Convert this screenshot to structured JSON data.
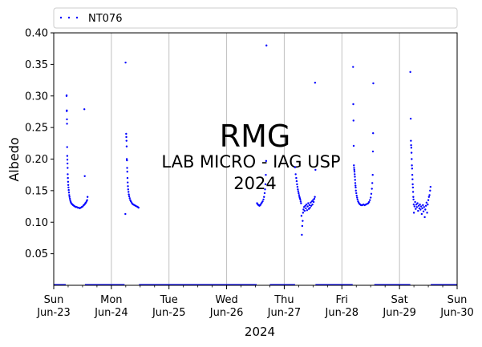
{
  "chart_data": {
    "type": "scatter",
    "title": "",
    "xlabel": "2024",
    "ylabel": "Albedo",
    "ylim": [
      0.0,
      0.4
    ],
    "xlim": [
      "2024-06-23",
      "2024-06-30"
    ],
    "x_ticks": [
      {
        "date": "2024-06-23",
        "day": "Sun",
        "label": "Jun-23"
      },
      {
        "date": "2024-06-24",
        "day": "Mon",
        "label": "Jun-24"
      },
      {
        "date": "2024-06-25",
        "day": "Tue",
        "label": "Jun-25"
      },
      {
        "date": "2024-06-26",
        "day": "Wed",
        "label": "Jun-26"
      },
      {
        "date": "2024-06-27",
        "day": "Thu",
        "label": "Jun-27"
      },
      {
        "date": "2024-06-28",
        "day": "Fri",
        "label": "Jun-28"
      },
      {
        "date": "2024-06-29",
        "day": "Sat",
        "label": "Jun-29"
      },
      {
        "date": "2024-06-30",
        "day": "Sun",
        "label": "Jun-30"
      }
    ],
    "y_ticks": [
      "0.05",
      "0.10",
      "0.15",
      "0.20",
      "0.25",
      "0.30",
      "0.35",
      "0.40"
    ],
    "y_tick_values": [
      0.05,
      0.1,
      0.15,
      0.2,
      0.25,
      0.3,
      0.35,
      0.4
    ],
    "grid": "vertical-major",
    "legend": {
      "placement": "top",
      "entries": [
        "NT076"
      ]
    },
    "series": [
      {
        "name": "NT076",
        "color": "#0000ff",
        "points": [
          [
            "2024-06-23T05:20",
            0.3
          ],
          [
            "2024-06-23T05:22",
            0.301
          ],
          [
            "2024-06-23T05:25",
            0.276
          ],
          [
            "2024-06-23T05:27",
            0.277
          ],
          [
            "2024-06-23T05:30",
            0.263
          ],
          [
            "2024-06-23T05:32",
            0.256
          ],
          [
            "2024-06-23T05:35",
            0.219
          ],
          [
            "2024-06-23T05:38",
            0.205
          ],
          [
            "2024-06-23T05:41",
            0.199
          ],
          [
            "2024-06-23T05:44",
            0.193
          ],
          [
            "2024-06-23T05:47",
            0.186
          ],
          [
            "2024-06-23T05:50",
            0.176
          ],
          [
            "2024-06-23T05:54",
            0.17
          ],
          [
            "2024-06-23T05:58",
            0.164
          ],
          [
            "2024-06-23T06:03",
            0.159
          ],
          [
            "2024-06-23T06:08",
            0.155
          ],
          [
            "2024-06-23T06:14",
            0.151
          ],
          [
            "2024-06-23T06:20",
            0.147
          ],
          [
            "2024-06-23T06:27",
            0.143
          ],
          [
            "2024-06-23T06:35",
            0.14
          ],
          [
            "2024-06-23T06:44",
            0.137
          ],
          [
            "2024-06-23T06:54",
            0.134
          ],
          [
            "2024-06-23T07:05",
            0.132
          ],
          [
            "2024-06-23T07:18",
            0.13
          ],
          [
            "2024-06-23T07:32",
            0.129
          ],
          [
            "2024-06-23T07:48",
            0.128
          ],
          [
            "2024-06-23T08:05",
            0.127
          ],
          [
            "2024-06-23T08:25",
            0.126
          ],
          [
            "2024-06-23T08:48",
            0.125
          ],
          [
            "2024-06-23T09:10",
            0.124
          ],
          [
            "2024-06-23T09:35",
            0.124
          ],
          [
            "2024-06-23T10:00",
            0.123
          ],
          [
            "2024-06-23T10:25",
            0.123
          ],
          [
            "2024-06-23T10:50",
            0.122
          ],
          [
            "2024-06-23T11:15",
            0.123
          ],
          [
            "2024-06-23T11:40",
            0.124
          ],
          [
            "2024-06-23T12:05",
            0.125
          ],
          [
            "2024-06-23T12:30",
            0.127
          ],
          [
            "2024-06-23T12:50",
            0.128
          ],
          [
            "2024-06-23T13:10",
            0.13
          ],
          [
            "2024-06-23T13:25",
            0.131
          ],
          [
            "2024-06-23T13:40",
            0.133
          ],
          [
            "2024-06-23T13:55",
            0.135
          ],
          [
            "2024-06-23T14:05",
            0.14
          ],
          [
            "2024-06-23T12:55",
            0.173
          ],
          [
            "2024-06-23T12:45",
            0.279
          ],
          [
            "2024-06-24T05:55",
            0.353
          ],
          [
            "2024-06-24T06:10",
            0.24
          ],
          [
            "2024-06-24T06:14",
            0.235
          ],
          [
            "2024-06-24T06:18",
            0.229
          ],
          [
            "2024-06-24T06:22",
            0.22
          ],
          [
            "2024-06-24T06:26",
            0.2
          ],
          [
            "2024-06-24T06:30",
            0.198
          ],
          [
            "2024-06-24T06:34",
            0.186
          ],
          [
            "2024-06-24T06:38",
            0.18
          ],
          [
            "2024-06-24T06:43",
            0.17
          ],
          [
            "2024-06-24T06:48",
            0.163
          ],
          [
            "2024-06-24T06:54",
            0.157
          ],
          [
            "2024-06-24T07:00",
            0.152
          ],
          [
            "2024-06-24T07:08",
            0.148
          ],
          [
            "2024-06-24T07:16",
            0.144
          ],
          [
            "2024-06-24T07:26",
            0.141
          ],
          [
            "2024-06-24T07:38",
            0.138
          ],
          [
            "2024-06-24T07:52",
            0.135
          ],
          [
            "2024-06-24T08:08",
            0.133
          ],
          [
            "2024-06-24T08:26",
            0.131
          ],
          [
            "2024-06-24T08:46",
            0.129
          ],
          [
            "2024-06-24T09:10",
            0.128
          ],
          [
            "2024-06-24T09:36",
            0.127
          ],
          [
            "2024-06-24T10:04",
            0.126
          ],
          [
            "2024-06-24T10:34",
            0.125
          ],
          [
            "2024-06-24T11:00",
            0.124
          ],
          [
            "2024-06-24T11:20",
            0.123
          ],
          [
            "2024-06-24T05:50",
            0.113
          ],
          [
            "2024-06-26T12:40",
            0.13
          ],
          [
            "2024-06-26T13:00",
            0.128
          ],
          [
            "2024-06-26T13:20",
            0.127
          ],
          [
            "2024-06-26T13:40",
            0.126
          ],
          [
            "2024-06-26T14:00",
            0.127
          ],
          [
            "2024-06-26T14:20",
            0.129
          ],
          [
            "2024-06-26T14:40",
            0.131
          ],
          [
            "2024-06-26T15:00",
            0.133
          ],
          [
            "2024-06-26T15:20",
            0.136
          ],
          [
            "2024-06-26T15:35",
            0.14
          ],
          [
            "2024-06-26T15:50",
            0.146
          ],
          [
            "2024-06-26T16:00",
            0.152
          ],
          [
            "2024-06-26T16:10",
            0.16
          ],
          [
            "2024-06-26T16:20",
            0.175
          ],
          [
            "2024-06-26T16:28",
            0.197
          ],
          [
            "2024-06-26T16:35",
            0.38
          ],
          [
            "2024-06-27T04:30",
            0.187
          ],
          [
            "2024-06-27T04:45",
            0.176
          ],
          [
            "2024-06-27T05:00",
            0.17
          ],
          [
            "2024-06-27T05:10",
            0.165
          ],
          [
            "2024-06-27T05:20",
            0.16
          ],
          [
            "2024-06-27T05:30",
            0.156
          ],
          [
            "2024-06-27T05:40",
            0.152
          ],
          [
            "2024-06-27T05:50",
            0.149
          ],
          [
            "2024-06-27T06:00",
            0.146
          ],
          [
            "2024-06-27T06:10",
            0.143
          ],
          [
            "2024-06-27T06:20",
            0.14
          ],
          [
            "2024-06-27T06:30",
            0.138
          ],
          [
            "2024-06-27T06:40",
            0.136
          ],
          [
            "2024-06-27T06:50",
            0.133
          ],
          [
            "2024-06-27T07:00",
            0.13
          ],
          [
            "2024-06-27T07:10",
            0.11
          ],
          [
            "2024-06-27T07:20",
            0.08
          ],
          [
            "2024-06-27T07:30",
            0.094
          ],
          [
            "2024-06-27T07:40",
            0.102
          ],
          [
            "2024-06-27T07:50",
            0.115
          ],
          [
            "2024-06-27T08:00",
            0.12
          ],
          [
            "2024-06-27T08:15",
            0.124
          ],
          [
            "2024-06-27T08:30",
            0.118
          ],
          [
            "2024-06-27T08:45",
            0.126
          ],
          [
            "2024-06-27T09:00",
            0.122
          ],
          [
            "2024-06-27T09:15",
            0.128
          ],
          [
            "2024-06-27T09:30",
            0.119
          ],
          [
            "2024-06-27T09:45",
            0.125
          ],
          [
            "2024-06-27T10:00",
            0.13
          ],
          [
            "2024-06-27T10:15",
            0.121
          ],
          [
            "2024-06-27T10:30",
            0.127
          ],
          [
            "2024-06-27T10:45",
            0.123
          ],
          [
            "2024-06-27T11:00",
            0.131
          ],
          [
            "2024-06-27T11:15",
            0.126
          ],
          [
            "2024-06-27T11:30",
            0.133
          ],
          [
            "2024-06-27T11:45",
            0.128
          ],
          [
            "2024-06-27T12:00",
            0.135
          ],
          [
            "2024-06-27T12:15",
            0.132
          ],
          [
            "2024-06-27T12:30",
            0.137
          ],
          [
            "2024-06-27T12:45",
            0.14
          ],
          [
            "2024-06-27T13:00",
            0.183
          ],
          [
            "2024-06-27T12:50",
            0.321
          ],
          [
            "2024-06-28T04:40",
            0.346
          ],
          [
            "2024-06-28T04:45",
            0.287
          ],
          [
            "2024-06-28T04:50",
            0.261
          ],
          [
            "2024-06-28T04:55",
            0.221
          ],
          [
            "2024-06-28T05:00",
            0.19
          ],
          [
            "2024-06-28T05:05",
            0.186
          ],
          [
            "2024-06-28T05:10",
            0.183
          ],
          [
            "2024-06-28T05:15",
            0.18
          ],
          [
            "2024-06-28T05:20",
            0.176
          ],
          [
            "2024-06-28T05:25",
            0.172
          ],
          [
            "2024-06-28T05:30",
            0.167
          ],
          [
            "2024-06-28T05:35",
            0.162
          ],
          [
            "2024-06-28T05:40",
            0.158
          ],
          [
            "2024-06-28T05:45",
            0.155
          ],
          [
            "2024-06-28T05:50",
            0.15
          ],
          [
            "2024-06-28T06:00",
            0.146
          ],
          [
            "2024-06-28T06:10",
            0.142
          ],
          [
            "2024-06-28T06:20",
            0.139
          ],
          [
            "2024-06-28T06:30",
            0.136
          ],
          [
            "2024-06-28T06:45",
            0.133
          ],
          [
            "2024-06-28T07:00",
            0.131
          ],
          [
            "2024-06-28T07:20",
            0.129
          ],
          [
            "2024-06-28T07:40",
            0.128
          ],
          [
            "2024-06-28T08:00",
            0.127
          ],
          [
            "2024-06-28T08:30",
            0.127
          ],
          [
            "2024-06-28T09:00",
            0.128
          ],
          [
            "2024-06-28T09:30",
            0.127
          ],
          [
            "2024-06-28T10:00",
            0.128
          ],
          [
            "2024-06-28T10:30",
            0.129
          ],
          [
            "2024-06-28T11:00",
            0.13
          ],
          [
            "2024-06-28T11:20",
            0.132
          ],
          [
            "2024-06-28T11:40",
            0.135
          ],
          [
            "2024-06-28T12:00",
            0.139
          ],
          [
            "2024-06-28T12:15",
            0.145
          ],
          [
            "2024-06-28T12:30",
            0.153
          ],
          [
            "2024-06-28T12:40",
            0.162
          ],
          [
            "2024-06-28T12:50",
            0.175
          ],
          [
            "2024-06-28T12:55",
            0.212
          ],
          [
            "2024-06-28T13:00",
            0.241
          ],
          [
            "2024-06-28T13:05",
            0.32
          ],
          [
            "2024-06-29T04:30",
            0.338
          ],
          [
            "2024-06-29T04:40",
            0.264
          ],
          [
            "2024-06-29T04:45",
            0.229
          ],
          [
            "2024-06-29T04:50",
            0.222
          ],
          [
            "2024-06-29T04:55",
            0.218
          ],
          [
            "2024-06-29T05:00",
            0.21
          ],
          [
            "2024-06-29T05:05",
            0.2
          ],
          [
            "2024-06-29T05:10",
            0.19
          ],
          [
            "2024-06-29T05:15",
            0.185
          ],
          [
            "2024-06-29T05:20",
            0.175
          ],
          [
            "2024-06-29T05:25",
            0.168
          ],
          [
            "2024-06-29T05:30",
            0.16
          ],
          [
            "2024-06-29T05:35",
            0.155
          ],
          [
            "2024-06-29T05:40",
            0.148
          ],
          [
            "2024-06-29T05:45",
            0.14
          ],
          [
            "2024-06-29T05:50",
            0.136
          ],
          [
            "2024-06-29T05:55",
            0.128
          ],
          [
            "2024-06-29T06:00",
            0.115
          ],
          [
            "2024-06-29T06:15",
            0.125
          ],
          [
            "2024-06-29T06:30",
            0.132
          ],
          [
            "2024-06-29T06:45",
            0.121
          ],
          [
            "2024-06-29T07:00",
            0.128
          ],
          [
            "2024-06-29T07:15",
            0.124
          ],
          [
            "2024-06-29T07:30",
            0.13
          ],
          [
            "2024-06-29T07:45",
            0.118
          ],
          [
            "2024-06-29T08:00",
            0.126
          ],
          [
            "2024-06-29T08:15",
            0.122
          ],
          [
            "2024-06-29T08:30",
            0.128
          ],
          [
            "2024-06-29T08:45",
            0.12
          ],
          [
            "2024-06-29T09:00",
            0.125
          ],
          [
            "2024-06-29T09:15",
            0.113
          ],
          [
            "2024-06-29T09:30",
            0.122
          ],
          [
            "2024-06-29T09:45",
            0.127
          ],
          [
            "2024-06-29T10:00",
            0.117
          ],
          [
            "2024-06-29T10:15",
            0.124
          ],
          [
            "2024-06-29T10:30",
            0.108
          ],
          [
            "2024-06-29T10:45",
            0.12
          ],
          [
            "2024-06-29T11:00",
            0.126
          ],
          [
            "2024-06-29T11:15",
            0.131
          ],
          [
            "2024-06-29T11:30",
            0.115
          ],
          [
            "2024-06-29T11:45",
            0.128
          ],
          [
            "2024-06-29T12:00",
            0.135
          ],
          [
            "2024-06-29T12:15",
            0.14
          ],
          [
            "2024-06-29T12:30",
            0.143
          ],
          [
            "2024-06-29T12:45",
            0.15
          ],
          [
            "2024-06-29T12:55",
            0.156
          ]
        ],
        "zero_segments": [
          [
            "2024-06-23T00:00",
            "2024-06-23T05:00"
          ],
          [
            "2024-06-23T13:00",
            "2024-06-24T05:30"
          ],
          [
            "2024-06-24T11:30",
            "2024-06-26T12:30"
          ],
          [
            "2024-06-26T18:00",
            "2024-06-27T04:30"
          ],
          [
            "2024-06-27T13:00",
            "2024-06-28T04:30"
          ],
          [
            "2024-06-28T13:30",
            "2024-06-29T04:30"
          ],
          [
            "2024-06-29T13:00",
            "2024-06-30T00:00"
          ]
        ]
      }
    ],
    "watermark": {
      "lines": [
        "RMG",
        "LAB MICRO - IAG USP",
        "2024"
      ],
      "color": "#c0c0c0"
    }
  }
}
